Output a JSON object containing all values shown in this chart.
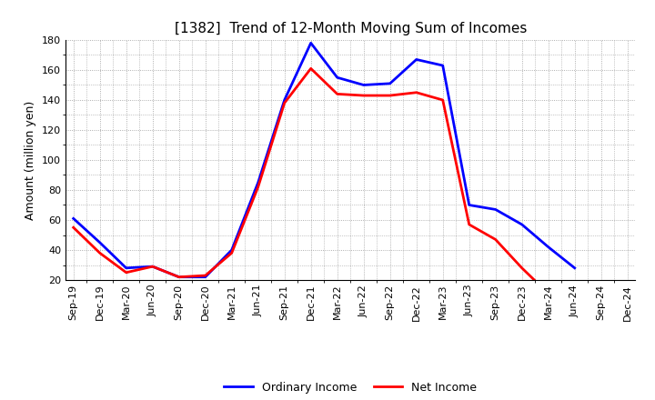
{
  "title": "[1382]  Trend of 12-Month Moving Sum of Incomes",
  "ylabel": "Amount (million yen)",
  "xlabels": [
    "Sep-19",
    "Dec-19",
    "Mar-20",
    "Jun-20",
    "Sep-20",
    "Dec-20",
    "Mar-21",
    "Jun-21",
    "Sep-21",
    "Dec-21",
    "Mar-22",
    "Jun-22",
    "Sep-22",
    "Dec-22",
    "Mar-23",
    "Jun-23",
    "Sep-23",
    "Dec-23",
    "Mar-24",
    "Jun-24",
    "Sep-24",
    "Dec-24"
  ],
  "ordinary_income": [
    61,
    45,
    28,
    29,
    22,
    22,
    40,
    85,
    140,
    178,
    155,
    150,
    151,
    167,
    163,
    70,
    67,
    57,
    42,
    28,
    null,
    null
  ],
  "net_income": [
    55,
    38,
    25,
    29,
    22,
    23,
    38,
    82,
    138,
    161,
    144,
    143,
    143,
    145,
    140,
    57,
    47,
    28,
    11,
    null,
    null,
    null
  ],
  "ylim_min": 20,
  "ylim_max": 180,
  "yticks": [
    20,
    40,
    60,
    80,
    100,
    120,
    140,
    160,
    180
  ],
  "ordinary_color": "#0000FF",
  "net_color": "#FF0000",
  "line_width": 2.0,
  "legend_ordinary": "Ordinary Income",
  "legend_net": "Net Income",
  "background_color": "#FFFFFF",
  "grid_color": "#999999",
  "title_fontsize": 11,
  "ylabel_fontsize": 9,
  "tick_fontsize": 8
}
